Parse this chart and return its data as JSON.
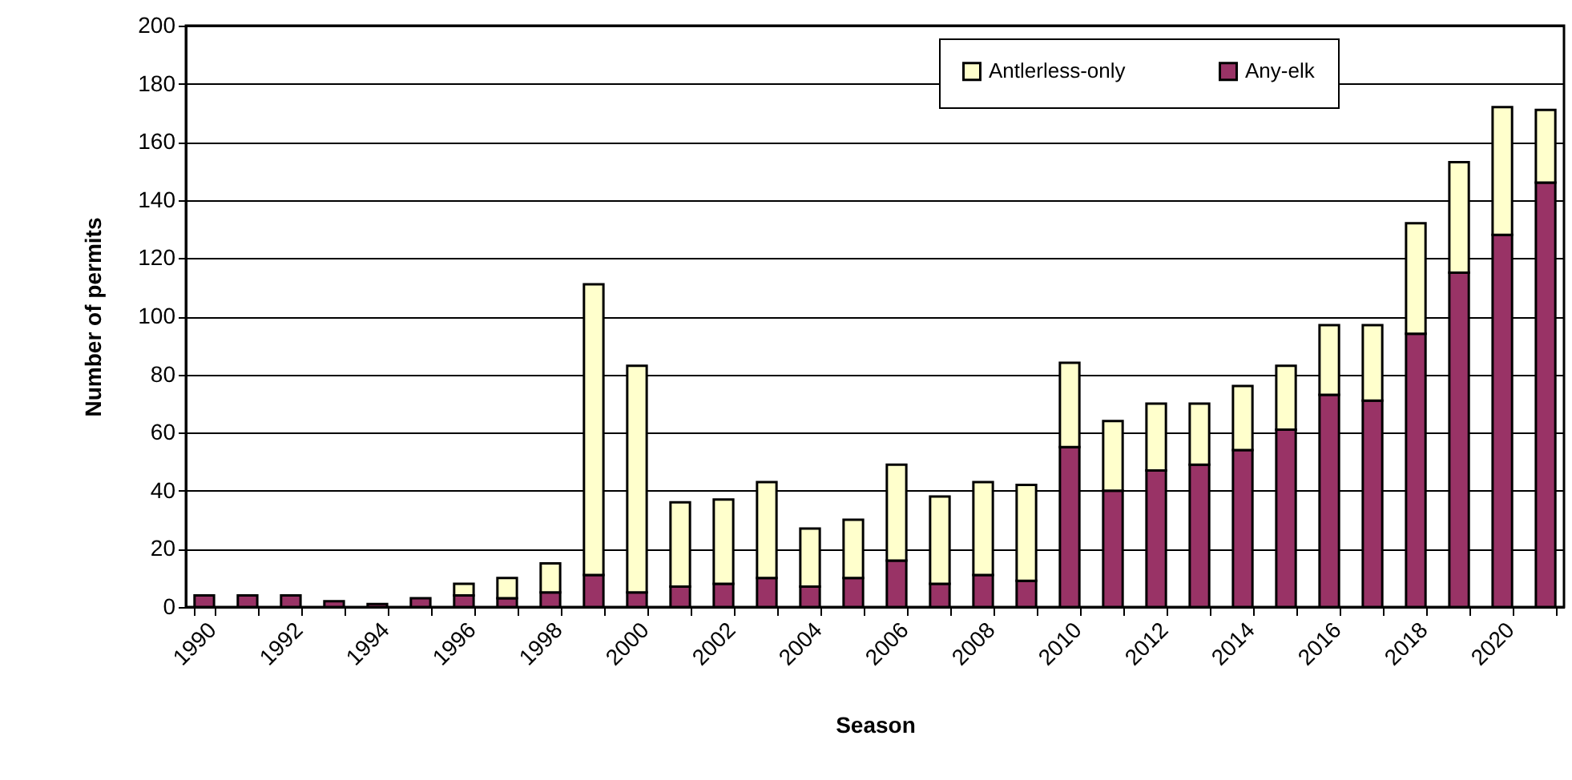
{
  "chart_data": {
    "type": "bar",
    "stacked": true,
    "xlabel": "Season",
    "ylabel": "Number of permits",
    "categories": [
      "1990",
      null,
      "1992",
      null,
      "1994",
      null,
      "1996",
      null,
      "1998",
      null,
      "2000",
      null,
      "2002",
      null,
      "2004",
      null,
      "2006",
      null,
      "2008",
      null,
      "2010",
      null,
      "2012",
      null,
      "2014",
      null,
      "2016",
      null,
      "2018",
      null,
      "2020",
      null
    ],
    "series": [
      {
        "name": "Any-elk",
        "color": "#993366",
        "values": [
          4,
          4,
          4,
          2,
          1,
          3,
          4,
          3,
          5,
          11,
          5,
          7,
          8,
          10,
          7,
          10,
          16,
          8,
          11,
          9,
          55,
          40,
          47,
          49,
          54,
          61,
          73,
          71,
          94,
          115,
          128,
          146
        ]
      },
      {
        "name": "Antlerless-only",
        "color": "#ffffcc",
        "values": [
          0,
          0,
          0,
          0,
          0,
          0,
          4,
          7,
          10,
          100,
          78,
          29,
          29,
          33,
          20,
          20,
          33,
          30,
          32,
          33,
          29,
          24,
          23,
          21,
          22,
          22,
          24,
          26,
          38,
          38,
          44,
          25
        ]
      }
    ],
    "ylim": [
      0,
      200
    ],
    "yticks": [
      0,
      20,
      40,
      60,
      80,
      100,
      120,
      140,
      160,
      180,
      200
    ],
    "grid": "y",
    "legend": "top right"
  }
}
